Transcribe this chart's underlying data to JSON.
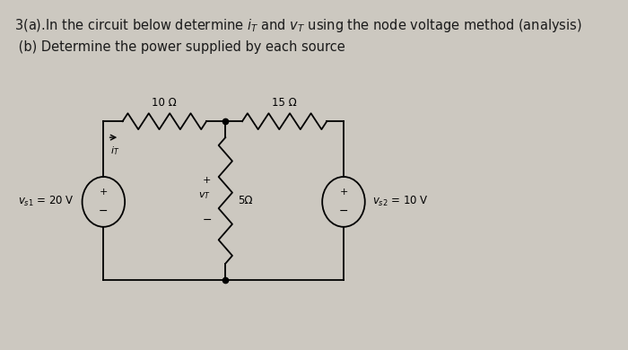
{
  "bg_color": "#ccc8c0",
  "paper_color": "#d8d4cc",
  "title_line1": "3(a).In the circuit below determine $i_T$ and $v_T$ using the node voltage method (analysis)",
  "title_line2": " (b) Determine the power supplied by each source",
  "title_fontsize": 10.5,
  "circuit": {
    "left_source_label": "$v_{s1}$ = 20 V",
    "right_source_label": "$v_{s2}$ = 10 V",
    "r1_label": "10 Ω",
    "r2_label": "15 Ω",
    "r3_label": "5Ω",
    "it_label": "$i_T$",
    "vt_label": "$v_T$"
  }
}
